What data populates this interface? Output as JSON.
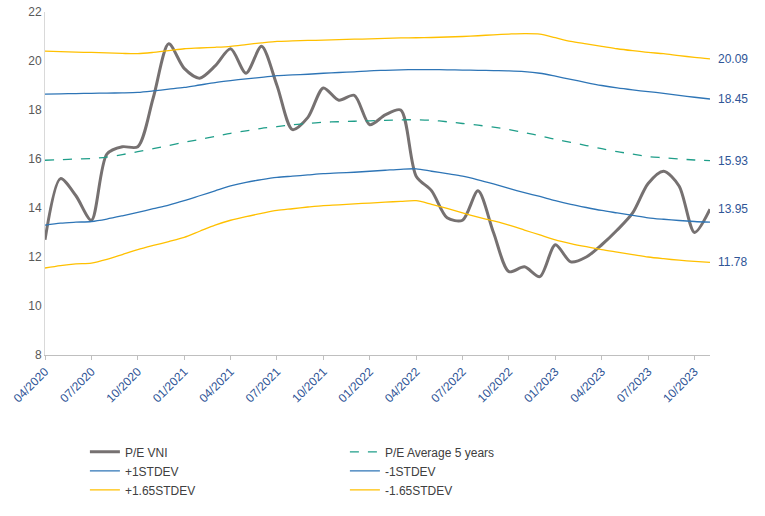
{
  "chart_data": {
    "type": "line",
    "categories": [
      "04/2020",
      null,
      null,
      "07/2020",
      null,
      null,
      "10/2020",
      null,
      null,
      "01/2021",
      null,
      null,
      "04/2021",
      null,
      null,
      "07/2021",
      null,
      null,
      "10/2021",
      null,
      null,
      "01/2022",
      null,
      null,
      "04/2022",
      null,
      null,
      "07/2022",
      null,
      null,
      "10/2022",
      null,
      null,
      "01/2023",
      null,
      null,
      "04/2023",
      null,
      null,
      "07/2023",
      null,
      null,
      "10/2023",
      null
    ],
    "series": [
      {
        "name": "P/E VNI",
        "color": "#767171",
        "line_style": "solid",
        "values": [
          12.7,
          15.2,
          14.5,
          13.5,
          16.2,
          16.5,
          16.5,
          18.5,
          20.7,
          19.7,
          19.3,
          19.8,
          20.5,
          19.5,
          20.6,
          19.0,
          17.2,
          17.7,
          18.9,
          18.4,
          18.6,
          17.4,
          17.8,
          18.0,
          15.3,
          14.7,
          13.6,
          13.5,
          14.7,
          13.0,
          11.4,
          11.6,
          11.2,
          12.5,
          11.8,
          12.0,
          12.5,
          13.1,
          13.8,
          15.0,
          15.5,
          14.9,
          13.0,
          13.95
        ]
      },
      {
        "name": "P/E Average 5 years",
        "color": "#1f9e89",
        "line_style": "dashed",
        "values": [
          15.95,
          15.97,
          16.0,
          16.02,
          16.08,
          16.18,
          16.3,
          16.42,
          16.55,
          16.68,
          16.8,
          16.92,
          17.05,
          17.15,
          17.25,
          17.32,
          17.4,
          17.45,
          17.5,
          17.52,
          17.54,
          17.56,
          17.58,
          17.6,
          17.6,
          17.58,
          17.52,
          17.45,
          17.38,
          17.3,
          17.2,
          17.08,
          16.95,
          16.8,
          16.68,
          16.55,
          16.42,
          16.3,
          16.2,
          16.1,
          16.05,
          16.0,
          15.96,
          15.93
        ]
      },
      {
        "name": "+1STDEV",
        "color": "#2e75b6",
        "line_style": "solid",
        "values": [
          18.65,
          18.66,
          18.67,
          18.68,
          18.69,
          18.7,
          18.72,
          18.78,
          18.85,
          18.92,
          19.02,
          19.12,
          19.2,
          19.27,
          19.33,
          19.4,
          19.43,
          19.46,
          19.5,
          19.53,
          19.56,
          19.6,
          19.62,
          19.64,
          19.65,
          19.65,
          19.64,
          19.63,
          19.62,
          19.61,
          19.6,
          19.57,
          19.5,
          19.38,
          19.25,
          19.12,
          19.0,
          18.9,
          18.82,
          18.75,
          18.68,
          18.6,
          18.52,
          18.45
        ]
      },
      {
        "name": "-1STDEV",
        "color": "#2e75b6",
        "line_style": "solid",
        "values": [
          13.3,
          13.38,
          13.42,
          13.45,
          13.55,
          13.68,
          13.82,
          13.97,
          14.12,
          14.3,
          14.5,
          14.7,
          14.9,
          15.05,
          15.16,
          15.25,
          15.3,
          15.35,
          15.4,
          15.43,
          15.46,
          15.5,
          15.54,
          15.58,
          15.6,
          15.5,
          15.4,
          15.3,
          15.15,
          14.98,
          14.8,
          14.63,
          14.47,
          14.3,
          14.15,
          14.02,
          13.9,
          13.8,
          13.7,
          13.6,
          13.54,
          13.49,
          13.45,
          13.42
        ]
      },
      {
        "name": "+1.65STDEV",
        "color": "#ffc000",
        "line_style": "solid",
        "values": [
          20.4,
          20.38,
          20.36,
          20.35,
          20.33,
          20.31,
          20.3,
          20.35,
          20.42,
          20.5,
          20.53,
          20.56,
          20.6,
          20.67,
          20.74,
          20.8,
          20.82,
          20.84,
          20.85,
          20.87,
          20.89,
          20.9,
          20.92,
          20.94,
          20.95,
          20.96,
          20.98,
          21.0,
          21.03,
          21.07,
          21.1,
          21.12,
          21.1,
          20.95,
          20.8,
          20.7,
          20.6,
          20.5,
          20.42,
          20.35,
          20.3,
          20.22,
          20.15,
          20.09
        ]
      },
      {
        "name": "-1.65STDEV",
        "color": "#ffc000",
        "line_style": "solid",
        "values": [
          11.55,
          11.65,
          11.72,
          11.75,
          11.9,
          12.1,
          12.3,
          12.47,
          12.63,
          12.8,
          13.05,
          13.3,
          13.5,
          13.65,
          13.78,
          13.9,
          13.97,
          14.04,
          14.1,
          14.13,
          14.17,
          14.2,
          14.24,
          14.27,
          14.3,
          14.15,
          13.98,
          13.8,
          13.63,
          13.47,
          13.3,
          13.1,
          12.9,
          12.7,
          12.55,
          12.42,
          12.3,
          12.2,
          12.1,
          12.0,
          11.93,
          11.87,
          11.82,
          11.78
        ]
      }
    ],
    "annotations": [
      {
        "text": "20.09",
        "series": "+1.65STDEV"
      },
      {
        "text": "18.45",
        "series": "+1STDEV"
      },
      {
        "text": "15.93",
        "series": "P/E Average 5 years"
      },
      {
        "text": "13.95",
        "series": "P/E VNI"
      },
      {
        "text": "11.78",
        "series": "-1.65STDEV"
      }
    ],
    "ylim": [
      8,
      22
    ],
    "yticks": [
      8,
      10,
      12,
      14,
      16,
      18,
      20,
      22
    ],
    "grid": false,
    "legend": "bottom"
  }
}
